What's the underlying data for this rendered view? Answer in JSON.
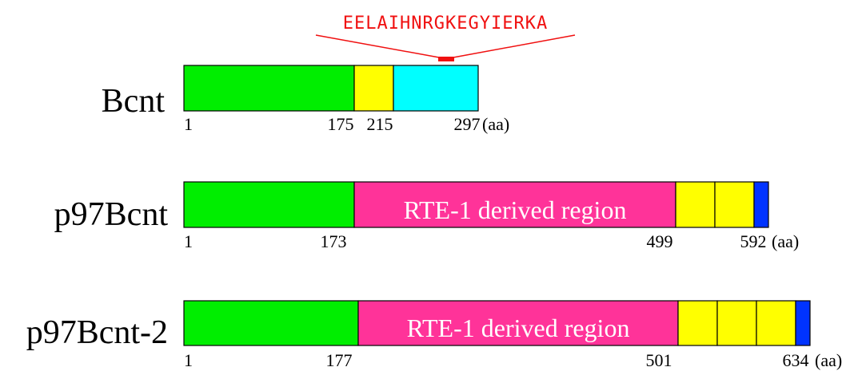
{
  "motif": {
    "sequence": "EELAIHNRGKEGYIERKA"
  },
  "proteins": [
    {
      "name": "Bcnt",
      "positions": [
        "1",
        "175",
        "215",
        "297"
      ],
      "unit": "(aa)"
    },
    {
      "name": "p97Bcnt",
      "region_label": "RTE-1 derived region",
      "positions": [
        "1",
        "173",
        "499",
        "592"
      ],
      "unit": "(aa)"
    },
    {
      "name": "p97Bcnt-2",
      "region_label": "RTE-1 derived region",
      "positions": [
        "1",
        "177",
        "501",
        "634"
      ],
      "unit": "(aa)"
    }
  ]
}
